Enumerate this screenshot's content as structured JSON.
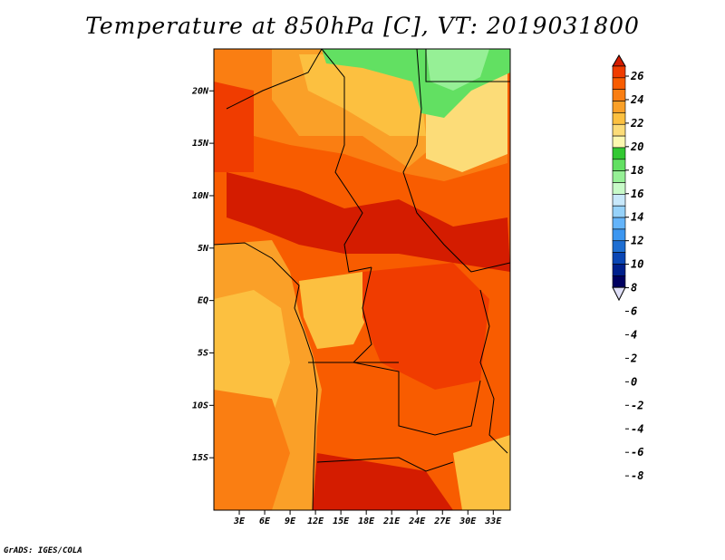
{
  "title": "Temperature at 850hPa [C], VT: 2019031800",
  "credit": "GrADS: IGES/COLA",
  "map": {
    "variable": "Temperature at 850hPa",
    "units": "C",
    "valid_time": "2019031800",
    "lon_range": [
      0,
      35
    ],
    "lat_range": [
      -20,
      24
    ],
    "lat_ticks": [
      {
        "value": 20,
        "label": "20N"
      },
      {
        "value": 15,
        "label": "15N"
      },
      {
        "value": 10,
        "label": "10N"
      },
      {
        "value": 5,
        "label": "5N"
      },
      {
        "value": 0,
        "label": "EQ"
      },
      {
        "value": -5,
        "label": "5S"
      },
      {
        "value": -10,
        "label": "10S"
      },
      {
        "value": -15,
        "label": "15S"
      }
    ],
    "lon_ticks": [
      {
        "value": 3,
        "label": "3E"
      },
      {
        "value": 6,
        "label": "6E"
      },
      {
        "value": 9,
        "label": "9E"
      },
      {
        "value": 12,
        "label": "12E"
      },
      {
        "value": 15,
        "label": "15E"
      },
      {
        "value": 18,
        "label": "18E"
      },
      {
        "value": 21,
        "label": "21E"
      },
      {
        "value": 24,
        "label": "24E"
      },
      {
        "value": 27,
        "label": "27E"
      },
      {
        "value": 30,
        "label": "30E"
      },
      {
        "value": 33,
        "label": "33E"
      }
    ]
  },
  "colorbar": {
    "labels": [
      "26",
      "24",
      "22",
      "20",
      "18",
      "16",
      "14",
      "12",
      "10",
      "8",
      "6",
      "4",
      "2",
      "0",
      "-2",
      "-4",
      "-6",
      "-8"
    ],
    "colors": [
      "#d41c00",
      "#f03c00",
      "#f85c00",
      "#fa7e12",
      "#faa028",
      "#fcc040",
      "#fcdc78",
      "#fcf8b0",
      "#32c832",
      "#62e062",
      "#96f096",
      "#c8fac8",
      "#c8e8fa",
      "#96d2fa",
      "#64b4fa",
      "#3c96f0",
      "#1e6ed2",
      "#0a46b4",
      "#00208c",
      "#000060",
      "#e0e0f8"
    ]
  }
}
